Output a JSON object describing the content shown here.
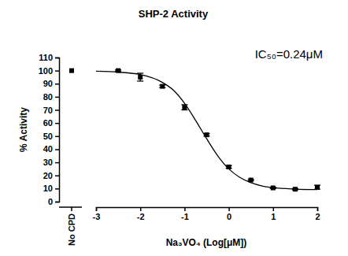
{
  "chart_data": {
    "type": "scatter",
    "title": "SHP-2 Activity",
    "x_label": "Na₃VO₄ (Log[μM])",
    "y_label": "% Activity",
    "annotation": "IC₅₀=0.24μM",
    "xlim": [
      -3,
      2
    ],
    "xticks": [
      -3,
      -2,
      -1,
      0,
      1,
      2
    ],
    "ylim": [
      0,
      110
    ],
    "yticks": [
      0,
      10,
      20,
      30,
      40,
      50,
      60,
      70,
      80,
      90,
      100,
      110
    ],
    "control": {
      "label": "No CPD",
      "value": 100
    },
    "series": [
      {
        "type": "scatter",
        "marker": "square",
        "color": "#000000",
        "x": [
          -2.5,
          -2,
          -1.5,
          -1,
          -0.5,
          0,
          0.5,
          1,
          1.5,
          2
        ],
        "values": [
          100,
          95,
          88,
          72,
          51,
          26.5,
          16.5,
          10.5,
          9.5,
          11
        ],
        "errors": [
          0.5,
          3,
          1,
          2,
          1,
          1,
          0.5,
          0.5,
          0.5,
          1.5
        ]
      },
      {
        "type": "line",
        "color": "#000000",
        "x": [
          -3,
          -2.5,
          -2,
          -1.5,
          -1.25,
          -1,
          -0.75,
          -0.5,
          -0.25,
          0,
          0.25,
          0.5,
          0.75,
          1,
          1.5,
          2
        ],
        "values": [
          99.5,
          98.8,
          97,
          91,
          85,
          75,
          62,
          48,
          35,
          25,
          18.5,
          14.5,
          12,
          10.7,
          9.6,
          9.2
        ]
      }
    ]
  }
}
